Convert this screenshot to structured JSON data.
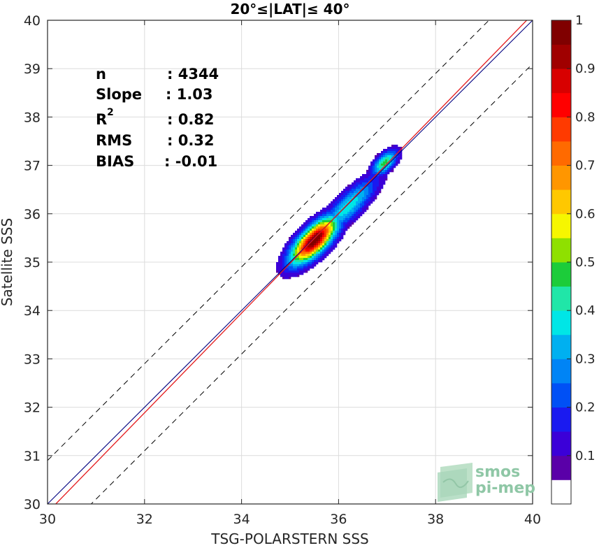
{
  "chart_data": {
    "type": "scatter",
    "title": "20°≤|LAT|≤ 40°",
    "xlabel": "TSG-POLARSTERN SSS",
    "ylabel": "Satellite SSS",
    "xlim": [
      30,
      40
    ],
    "ylim": [
      30,
      40
    ],
    "xticks": [
      30,
      32,
      34,
      36,
      38,
      40
    ],
    "yticks": [
      30,
      31,
      32,
      33,
      34,
      35,
      36,
      37,
      38,
      39,
      40
    ],
    "grid": true,
    "lines": {
      "identity": {
        "color": "#000080",
        "x": [
          30,
          40
        ],
        "y": [
          30,
          40
        ]
      },
      "regression": {
        "color": "#e41a1c",
        "slope": 1.03,
        "bias": -0.01
      },
      "envelope_offset": 0.9
    },
    "stats": [
      {
        "label": "n",
        "value": ": 4344"
      },
      {
        "label": "Slope",
        "value": ": 1.03"
      },
      {
        "label": "R",
        "sup": "2",
        "value": ": 0.82"
      },
      {
        "label": "RMS",
        "value": ": 0.32"
      },
      {
        "label": "BIAS",
        "value": ": -0.01"
      }
    ],
    "density_peaks": [
      {
        "x": 35.5,
        "y": 35.45,
        "relative_density": 1.0
      },
      {
        "x": 36.95,
        "y": 37.05,
        "relative_density": 0.45
      }
    ],
    "colorbar": {
      "ticks": [
        "0.1",
        "0.2",
        "0.3",
        "0.4",
        "0.5",
        "0.6",
        "0.7",
        "0.8",
        "0.9",
        "1"
      ],
      "range": [
        0,
        1
      ],
      "colors": [
        "#ffffff",
        "#5a00a8",
        "#3b00d8",
        "#1a1af0",
        "#0050f5",
        "#0084f5",
        "#00b0f0",
        "#00e6e6",
        "#20e6a8",
        "#1ccc3a",
        "#8fe000",
        "#f6f600",
        "#ffc800",
        "#ff9600",
        "#ff6a00",
        "#ff3a00",
        "#ff0000",
        "#d80000",
        "#a00000",
        "#800000"
      ]
    }
  },
  "logo": {
    "line1": "smos",
    "line2": "pi-mep"
  }
}
